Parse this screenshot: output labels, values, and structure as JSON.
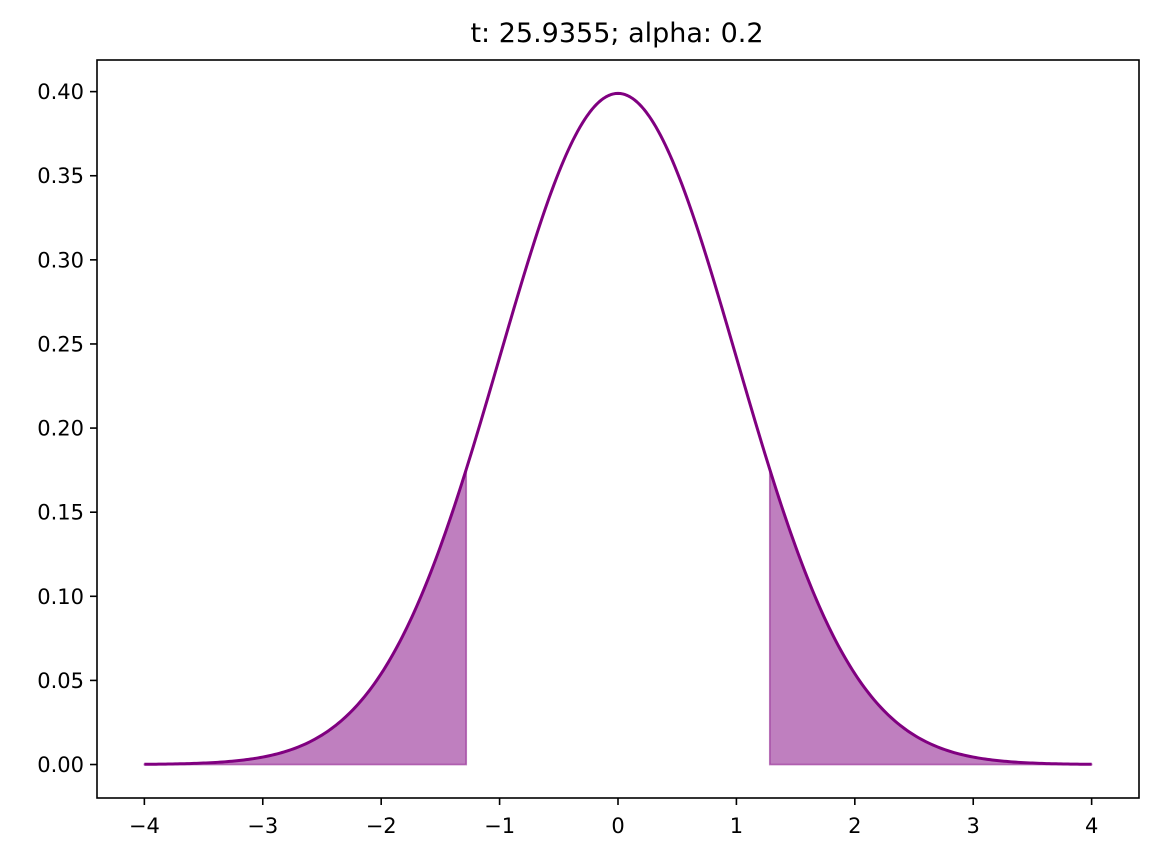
{
  "chart_data": {
    "type": "area",
    "title": "t: 25.9355; alpha: 0.2",
    "xlabel": "",
    "ylabel": "",
    "xlim": [
      -4.4,
      4.4
    ],
    "ylim": [
      -0.0199,
      0.4188
    ],
    "grid": false,
    "legend": "none",
    "x_ticks": [
      -4,
      -3,
      -2,
      -1,
      0,
      1,
      2,
      3,
      4
    ],
    "x_tick_labels": [
      "−4",
      "−3",
      "−2",
      "−1",
      "0",
      "1",
      "2",
      "3",
      "4"
    ],
    "y_ticks": [
      0.0,
      0.05,
      0.1,
      0.15,
      0.2,
      0.25,
      0.3,
      0.35,
      0.4
    ],
    "y_tick_labels": [
      "0.00",
      "0.05",
      "0.10",
      "0.15",
      "0.20",
      "0.25",
      "0.30",
      "0.35",
      "0.40"
    ],
    "series": [
      {
        "kind": "curve",
        "color": "#800080",
        "x": [
          -4.0,
          -3.75,
          -3.5,
          -3.25,
          -3.0,
          -2.75,
          -2.5,
          -2.25,
          -2.0,
          -1.75,
          -1.5,
          -1.25,
          -1.0,
          -0.75,
          -0.5,
          -0.25,
          0.0,
          0.25,
          0.5,
          0.75,
          1.0,
          1.25,
          1.5,
          1.75,
          2.0,
          2.25,
          2.5,
          2.75,
          3.0,
          3.25,
          3.5,
          3.75,
          4.0
        ],
        "y": [
          0.0001,
          0.0004,
          0.0009,
          0.002,
          0.0044,
          0.0091,
          0.0175,
          0.0317,
          0.054,
          0.0863,
          0.1295,
          0.1826,
          0.242,
          0.3011,
          0.3521,
          0.3867,
          0.3989,
          0.3867,
          0.3521,
          0.3011,
          0.242,
          0.1826,
          0.1295,
          0.0863,
          0.054,
          0.0317,
          0.0175,
          0.0091,
          0.0044,
          0.002,
          0.0009,
          0.0004,
          0.0001
        ]
      },
      {
        "kind": "shaded-tail",
        "color": "#800080",
        "from": -4.0,
        "to": -1.2816
      },
      {
        "kind": "shaded-tail",
        "color": "#800080",
        "from": 1.2816,
        "to": 4.0
      }
    ]
  }
}
